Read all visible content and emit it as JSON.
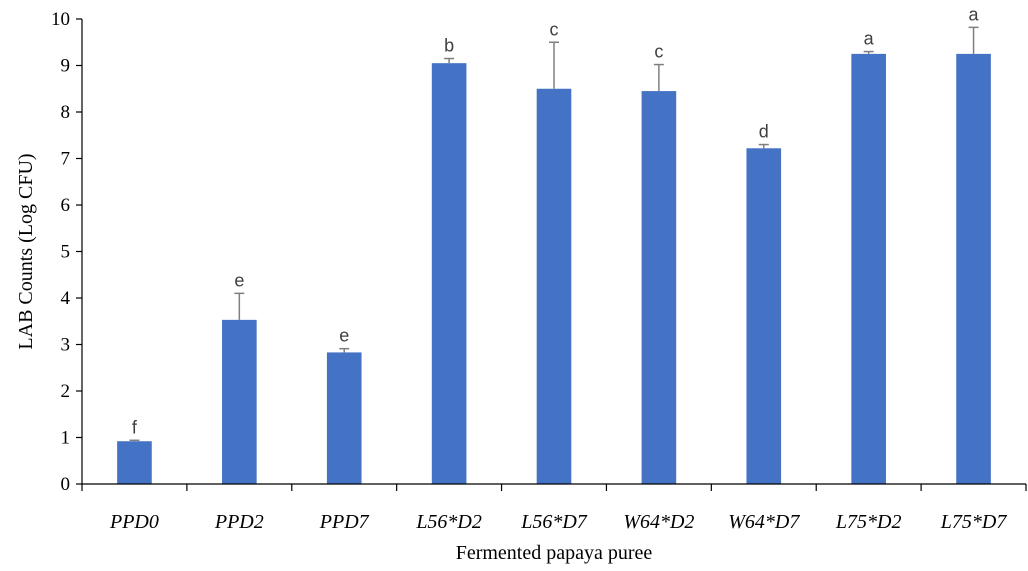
{
  "chart_data": {
    "type": "bar",
    "xlabel": "Fermented papaya puree",
    "ylabel": "LAB Counts (Log CFU)",
    "ylim": [
      0,
      10
    ],
    "yticks": [
      "0",
      "1",
      "2",
      "3",
      "4",
      "5",
      "6",
      "7",
      "8",
      "9",
      "10"
    ],
    "grid": false,
    "categories": [
      "PPD0",
      "PPD2",
      "PPD7",
      "L56*D2",
      "L56*D7",
      "W64*D2",
      "W64*D7",
      "L75*D2",
      "L75*D7"
    ],
    "values": [
      0.92,
      3.53,
      2.83,
      9.05,
      8.5,
      8.45,
      7.22,
      9.25,
      9.25
    ],
    "error_upper": [
      0.02,
      0.57,
      0.08,
      0.1,
      1.0,
      0.57,
      0.08,
      0.05,
      0.57
    ],
    "significance_letters": [
      "f",
      "e",
      "e",
      "b",
      "c",
      "c",
      "d",
      "a",
      "a"
    ],
    "colors": {
      "bar": "#4472C4",
      "error_bar": "#7F7F7F",
      "axis": "#000000",
      "letters": "#404040"
    }
  }
}
